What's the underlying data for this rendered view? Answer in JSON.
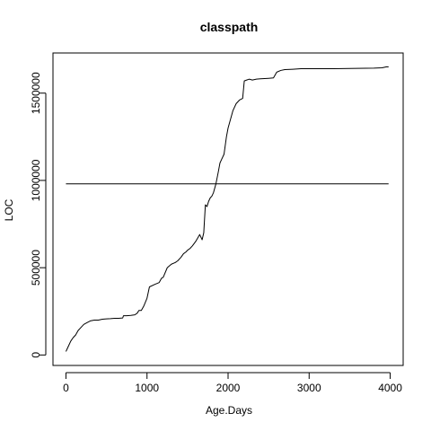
{
  "chart_data": {
    "type": "line",
    "title": "classpath",
    "xlabel": "Age.Days",
    "ylabel": "LOC",
    "xlim": [
      -160,
      4160
    ],
    "ylim": [
      -60000,
      1730000
    ],
    "xticks": [
      0,
      1000,
      2000,
      3000,
      4000
    ],
    "xtick_labels": [
      "0",
      "1000",
      "2000",
      "3000",
      "4000"
    ],
    "yticks": [
      0,
      500000,
      1000000,
      1500000
    ],
    "ytick_labels": [
      "0",
      "500000",
      "1000000",
      "1500000"
    ],
    "grid": false,
    "series": [
      {
        "values_x": [
          0,
          30,
          60,
          90,
          120,
          150,
          180,
          220,
          260,
          300,
          350,
          400,
          450,
          500,
          550,
          600,
          650,
          700,
          710,
          750,
          800,
          850,
          880,
          900,
          930,
          960,
          1000,
          1030,
          1100,
          1150,
          1180,
          1200,
          1250,
          1300,
          1350,
          1380,
          1420,
          1450,
          1480,
          1500,
          1530,
          1560,
          1600,
          1650,
          1680,
          1700,
          1720,
          1740,
          1760,
          1780,
          1800,
          1820,
          1850,
          1880,
          1900,
          1920,
          1950,
          1980,
          2000,
          2030,
          2060,
          2100,
          2140,
          2180,
          2200,
          2230,
          2260,
          2300,
          2350,
          2400,
          2500,
          2560,
          2600,
          2650,
          2700,
          2800,
          2900,
          3000,
          3300,
          3600,
          3800,
          3900,
          3950,
          3980
        ],
        "values_y": [
          20000,
          50000,
          80000,
          100000,
          115000,
          140000,
          155000,
          175000,
          185000,
          195000,
          200000,
          200000,
          205000,
          207000,
          208000,
          210000,
          210000,
          212000,
          225000,
          225000,
          227000,
          230000,
          240000,
          255000,
          255000,
          280000,
          325000,
          390000,
          405000,
          415000,
          440000,
          445000,
          500000,
          520000,
          530000,
          540000,
          560000,
          580000,
          590000,
          600000,
          610000,
          625000,
          650000,
          690000,
          660000,
          700000,
          860000,
          850000,
          880000,
          900000,
          910000,
          930000,
          980000,
          1050000,
          1100000,
          1120000,
          1150000,
          1250000,
          1300000,
          1350000,
          1400000,
          1440000,
          1460000,
          1470000,
          1570000,
          1575000,
          1580000,
          1575000,
          1580000,
          1582000,
          1585000,
          1587000,
          1620000,
          1630000,
          1635000,
          1637000,
          1640000,
          1640000,
          1640000,
          1642000,
          1643000,
          1645000,
          1650000,
          1650000
        ]
      },
      {
        "values_x": [
          0,
          3980
        ],
        "values_y": [
          980000,
          980000
        ]
      }
    ]
  },
  "line_color": "#000000"
}
